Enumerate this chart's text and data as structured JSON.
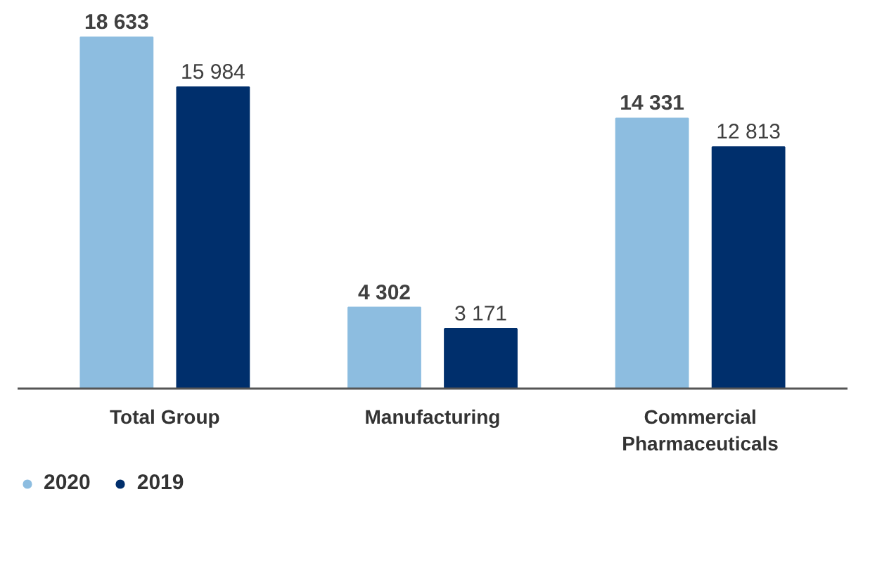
{
  "chart_data": {
    "type": "bar",
    "categories": [
      "Total Group",
      "Manufacturing",
      "Commercial Pharmaceuticals"
    ],
    "series": [
      {
        "name": "2020",
        "color": "#8dbde0",
        "values": [
          18633,
          4302,
          14331
        ],
        "value_labels": [
          "18 633",
          "4 302",
          "14 331"
        ]
      },
      {
        "name": "2019",
        "color": "#002f6c",
        "values": [
          15984,
          3171,
          12813
        ],
        "value_labels": [
          "15 984",
          "3 171",
          "12 813"
        ]
      }
    ],
    "legend": "bottom left"
  }
}
